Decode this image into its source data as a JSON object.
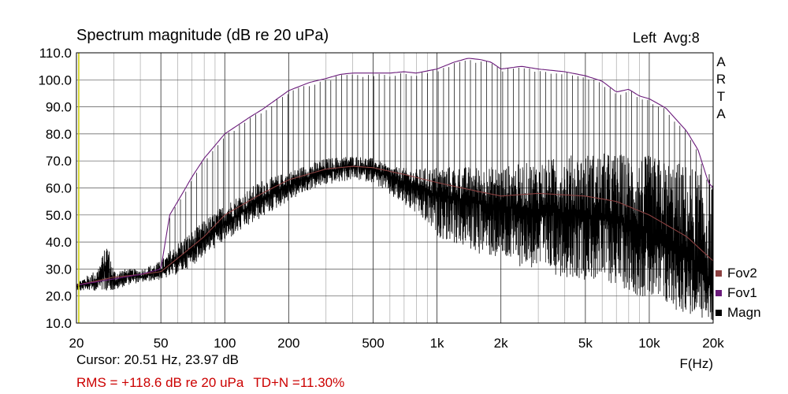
{
  "header": {
    "title": "Spectrum magnitude (dB re 20 uPa)",
    "channel": "Left  Avg:8"
  },
  "brand": [
    "A",
    "R",
    "T",
    "A"
  ],
  "footer": {
    "cursor": "Cursor: 20.51 Hz, 23.97 dB",
    "rms": "RMS = +118.6 dB re 20 uPa",
    "tdn": "TD+N =11.30%"
  },
  "colors": {
    "background": "#ffffff",
    "grid": "#000000",
    "magn": "#000000",
    "fov1": "#6a1a7a",
    "fov2": "#8b4040",
    "cursor_line": "#cccc00",
    "rms_text": "#cc0000"
  },
  "chart_data": {
    "type": "line",
    "title": "Spectrum magnitude (dB re 20 uPa)",
    "xlabel": "F(Hz)",
    "ylabel": "",
    "x_scale": "log",
    "xlim": [
      20,
      20000
    ],
    "ylim": [
      10,
      110
    ],
    "x_ticks": [
      20,
      50,
      100,
      200,
      500,
      1000,
      2000,
      5000,
      10000,
      20000
    ],
    "x_tick_labels": [
      "20",
      "50",
      "100",
      "200",
      "500",
      "1k",
      "2k",
      "5k",
      "10k",
      "20k"
    ],
    "y_ticks": [
      10,
      20,
      30,
      40,
      50,
      60,
      70,
      80,
      90,
      100,
      110
    ],
    "y_tick_labels": [
      "10.0",
      "20.0",
      "30.0",
      "40.0",
      "50.0",
      "60.0",
      "70.0",
      "80.0",
      "90.0",
      "100.0",
      "110.0"
    ],
    "grid": true,
    "legend": "bottom-right",
    "cursor": {
      "freq_hz": 20.51,
      "level_db": 23.97
    },
    "series": [
      {
        "name": "Fov2",
        "color": "#8b4040",
        "x": [
          20,
          30,
          40,
          50,
          60,
          80,
          100,
          150,
          200,
          300,
          400,
          500,
          700,
          1000,
          1500,
          2000,
          3000,
          5000,
          7000,
          10000,
          15000,
          20000
        ],
        "y": [
          24,
          27,
          28,
          29,
          34,
          42,
          50,
          58,
          63,
          67,
          68,
          67.5,
          65,
          62,
          59,
          57,
          58,
          57,
          55,
          50,
          42,
          33
        ]
      },
      {
        "name": "Fov1",
        "color": "#6a1a7a",
        "x": [
          20,
          40,
          50,
          55,
          60,
          70,
          80,
          100,
          130,
          150,
          200,
          250,
          300,
          350,
          400,
          500,
          600,
          700,
          800,
          1000,
          1200,
          1400,
          1600,
          1800,
          2000,
          2500,
          3000,
          4000,
          5000,
          6000,
          7000,
          8000,
          9000,
          10000,
          12000,
          15000,
          17000,
          19000,
          20000
        ],
        "y": [
          24,
          28,
          30,
          50,
          55,
          64,
          71,
          80,
          86,
          89,
          96,
          99,
          100.5,
          102,
          102.5,
          102.5,
          102.5,
          103,
          102.5,
          104,
          106.5,
          108,
          107.5,
          106.5,
          104,
          105,
          104,
          103,
          101.5,
          99.5,
          95.5,
          96.5,
          94,
          93,
          89.5,
          81,
          74,
          62,
          60
        ]
      },
      {
        "name": "Magn",
        "color": "#000000",
        "x": [
          20,
          25,
          28,
          30,
          35,
          40,
          50,
          60,
          70,
          80,
          100,
          120,
          150,
          200,
          250,
          300,
          400,
          500,
          600,
          800,
          1000,
          1500,
          2000,
          3000,
          4000,
          5000,
          7000,
          10000,
          15000,
          20000
        ],
        "y": [
          24,
          25,
          31,
          24,
          28,
          27,
          29,
          33,
          37,
          41,
          47,
          51,
          56,
          61,
          64,
          66,
          68,
          67,
          64,
          60,
          57,
          55,
          53,
          52,
          51,
          50,
          48,
          43,
          36,
          24
        ],
        "envelope_high": [
          25,
          30,
          40,
          30,
          30,
          30,
          33,
          40,
          44,
          48,
          54,
          58,
          63,
          66,
          69,
          71,
          72,
          71,
          68,
          67,
          68,
          68,
          68,
          70,
          72,
          73,
          73,
          72,
          69,
          66
        ],
        "envelope_low": [
          22,
          22,
          22,
          22,
          24,
          25,
          26,
          28,
          31,
          35,
          40,
          44,
          49,
          55,
          59,
          61,
          63,
          62,
          57,
          50,
          42,
          36,
          33,
          29,
          27,
          26,
          24,
          18,
          13,
          10
        ]
      }
    ]
  }
}
